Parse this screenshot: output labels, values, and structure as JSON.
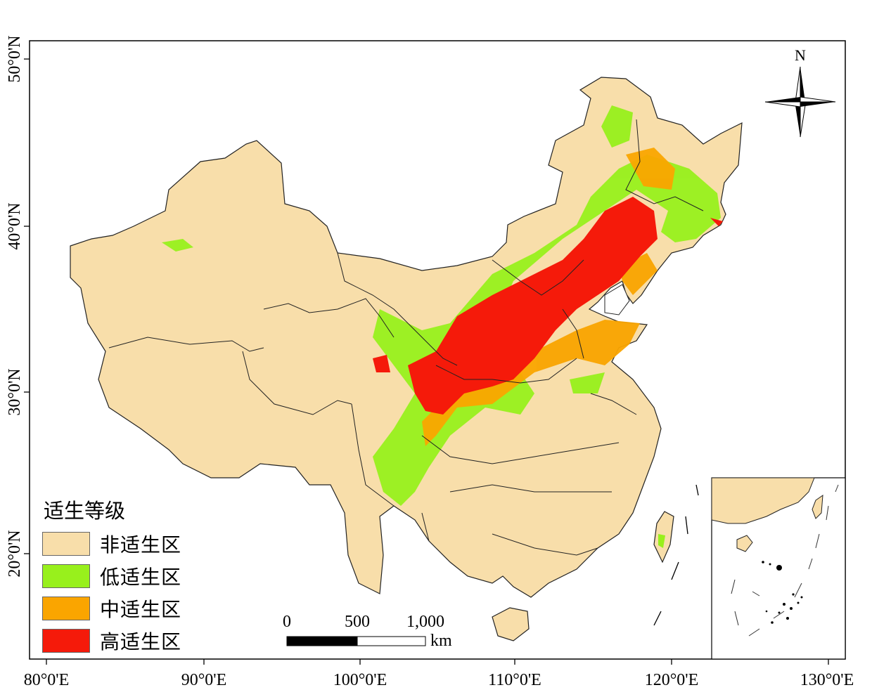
{
  "map": {
    "lon_ticks": [
      "80°0'E",
      "90°0'E",
      "100°0'E",
      "110°0'E",
      "120°0'E",
      "130°0'E"
    ],
    "lat_ticks": [
      "50°0'N",
      "40°0'N",
      "30°0'N",
      "20°0'N"
    ],
    "north_label": "N"
  },
  "legend": {
    "title": "适生等级",
    "items": [
      {
        "label": "非适生区",
        "color": "#F8DEAA"
      },
      {
        "label": "低适生区",
        "color": "#98F01C"
      },
      {
        "label": "中适生区",
        "color": "#FAA500"
      },
      {
        "label": "高适生区",
        "color": "#F51A0A"
      }
    ]
  },
  "scalebar": {
    "labels": [
      "0",
      "500",
      "1,000"
    ],
    "unit": "km"
  }
}
